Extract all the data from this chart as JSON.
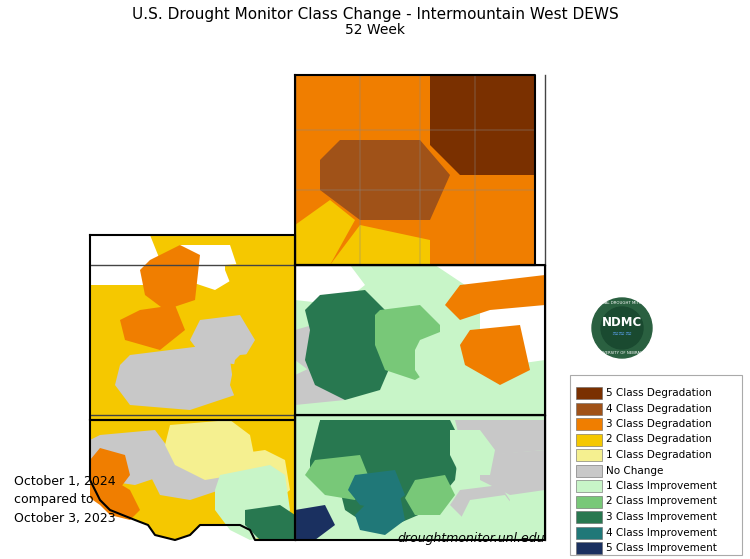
{
  "title_line1": "U.S. Drought Monitor Class Change - Intermountain West DEWS",
  "title_line2": "52 Week",
  "date_line1": "October 1, 2024",
  "date_line2": "compared to",
  "date_line3": "October 3, 2023",
  "website": "droughtmonitor.unl.edu",
  "background_color": "#ffffff",
  "legend_items": [
    {
      "label": "5 Class Degradation",
      "color": "#7a3000"
    },
    {
      "label": "4 Class Degradation",
      "color": "#a05218"
    },
    {
      "label": "3 Class Degradation",
      "color": "#f07e00"
    },
    {
      "label": "2 Class Degradation",
      "color": "#f5c800"
    },
    {
      "label": "1 Class Degradation",
      "color": "#f5f090"
    },
    {
      "label": "No Change",
      "color": "#c8c8c8"
    },
    {
      "label": "1 Class Improvement",
      "color": "#c8f5c8"
    },
    {
      "label": "2 Class Improvement",
      "color": "#78c878"
    },
    {
      "label": "3 Class Improvement",
      "color": "#287850"
    },
    {
      "label": "4 Class Improvement",
      "color": "#207878"
    },
    {
      "label": "5 Class Improvement",
      "color": "#1a3060"
    }
  ],
  "figsize": [
    7.5,
    5.59
  ],
  "dpi": 100,
  "title_fontsize": 11,
  "subtitle_fontsize": 10,
  "legend_fontsize": 7.5,
  "date_fontsize": 9,
  "website_fontsize": 9
}
